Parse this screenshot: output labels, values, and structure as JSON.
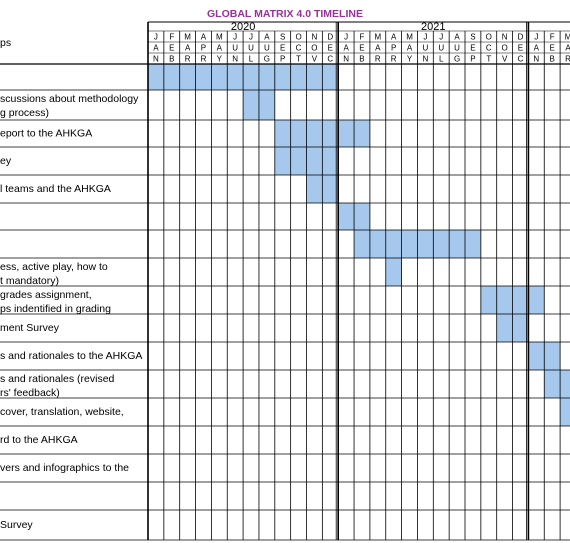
{
  "header": {
    "title": "GLOBAL MATRIX 4.0 TIMELINE",
    "steps_label": "ps"
  },
  "years": [
    {
      "label": "2020",
      "months": [
        [
          "J",
          "A",
          "N"
        ],
        [
          "F",
          "E",
          "B"
        ],
        [
          "M",
          "A",
          "R"
        ],
        [
          "A",
          "P",
          "R"
        ],
        [
          "M",
          "A",
          "Y"
        ],
        [
          "J",
          "U",
          "N"
        ],
        [
          "J",
          "U",
          "L"
        ],
        [
          "A",
          "U",
          "G"
        ],
        [
          "S",
          "E",
          "P"
        ],
        [
          "O",
          "C",
          "T"
        ],
        [
          "N",
          "O",
          "V"
        ],
        [
          "D",
          "E",
          "C"
        ]
      ]
    },
    {
      "label": "2021",
      "months": [
        [
          "J",
          "A",
          "N"
        ],
        [
          "F",
          "E",
          "B"
        ],
        [
          "M",
          "A",
          "R"
        ],
        [
          "A",
          "P",
          "R"
        ],
        [
          "M",
          "A",
          "Y"
        ],
        [
          "J",
          "U",
          "N"
        ],
        [
          "J",
          "U",
          "L"
        ],
        [
          "A",
          "U",
          "G"
        ],
        [
          "S",
          "E",
          "P"
        ],
        [
          "O",
          "C",
          "T"
        ],
        [
          "N",
          "O",
          "V"
        ],
        [
          "D",
          "E",
          "C"
        ]
      ]
    },
    {
      "label": null,
      "months": [
        [
          "J",
          "A",
          "N"
        ],
        [
          "F",
          "E",
          "B"
        ],
        [
          "M",
          "A",
          "R"
        ]
      ]
    }
  ],
  "rows": [
    {
      "lines": [],
      "bars": [
        [
          0,
          11
        ]
      ]
    },
    {
      "lines": [
        "scussions about methodology",
        "g process)"
      ],
      "bars": [
        [
          6,
          7
        ]
      ]
    },
    {
      "lines": [
        "eport to the AHKGA"
      ],
      "bars": [
        [
          8,
          13
        ]
      ]
    },
    {
      "lines": [
        "ey"
      ],
      "bars": [
        [
          8,
          11
        ]
      ]
    },
    {
      "lines": [
        "l teams and the AHKGA"
      ],
      "bars": [
        [
          10,
          11
        ]
      ]
    },
    {
      "lines": [],
      "bars": [
        [
          12,
          13
        ]
      ]
    },
    {
      "lines": [],
      "bars": [
        [
          13,
          20
        ]
      ]
    },
    {
      "lines": [
        "ess, active play, how to",
        "t mandatory)"
      ],
      "bars": [
        [
          15,
          15
        ]
      ]
    },
    {
      "lines": [
        "grades assignment,",
        "ps indentified in grading"
      ],
      "bars": [
        [
          21,
          24
        ]
      ]
    },
    {
      "lines": [
        "ment Survey"
      ],
      "bars": [
        [
          22,
          23
        ]
      ]
    },
    {
      "lines": [
        "s and rationales to the AHKGA"
      ],
      "bars": [
        [
          24,
          25
        ]
      ]
    },
    {
      "lines": [
        "s and rationales (revised",
        "rs' feedback)"
      ],
      "bars": [
        [
          25,
          26
        ]
      ]
    },
    {
      "lines": [
        "cover, translation, website,"
      ],
      "bars": [
        [
          26,
          26
        ]
      ]
    },
    {
      "lines": [
        "rd to the AHKGA"
      ],
      "bars": []
    },
    {
      "lines": [
        "vers and infographics to the"
      ],
      "bars": []
    },
    {
      "lines": [],
      "bars": []
    },
    {
      "lines": [
        "Survey"
      ],
      "bars": []
    }
  ]
}
